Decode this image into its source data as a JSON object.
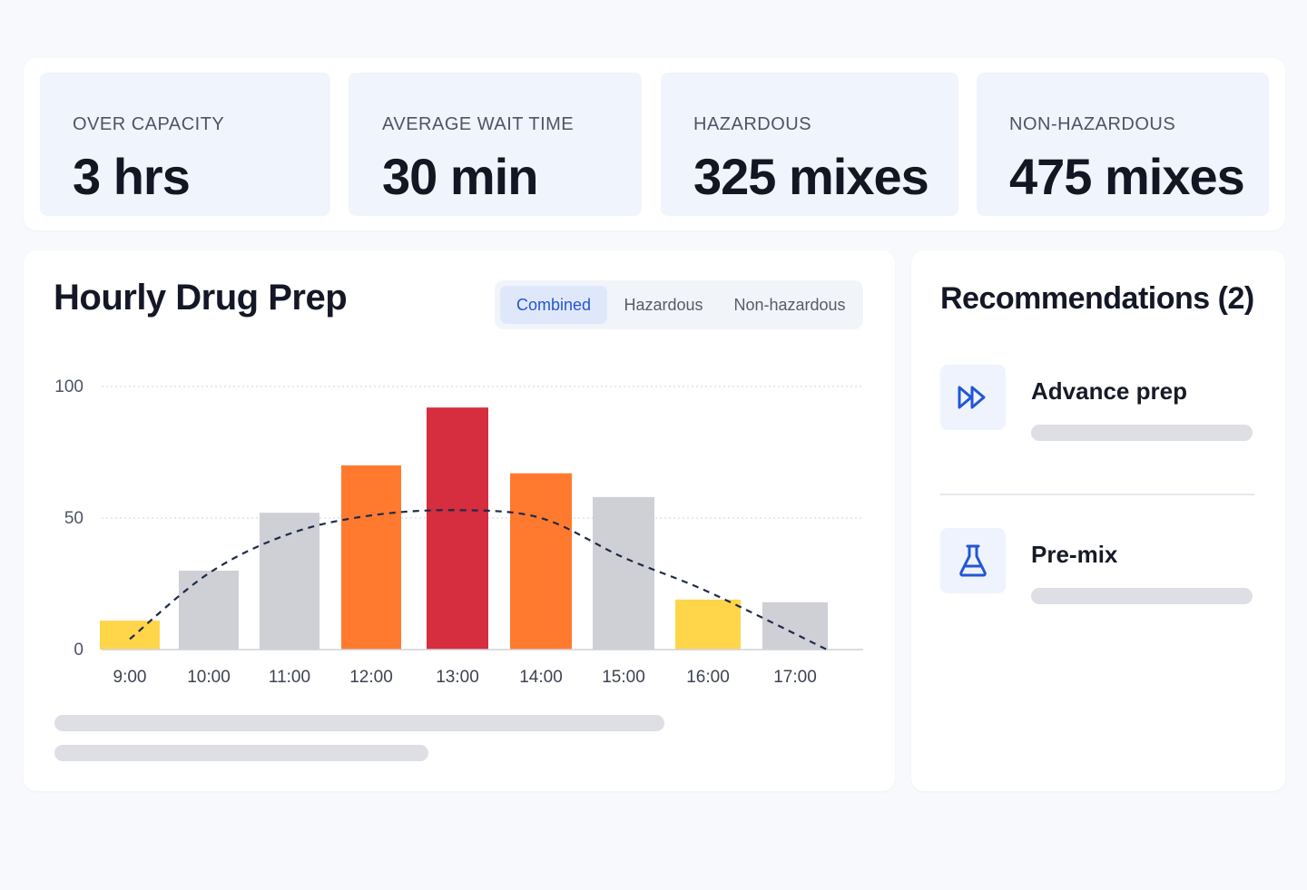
{
  "stats": [
    {
      "label": "OVER CAPACITY",
      "value": "3 hrs"
    },
    {
      "label": "AVERAGE WAIT TIME",
      "value": "30 min"
    },
    {
      "label": "HAZARDOUS",
      "value": "325 mixes"
    },
    {
      "label": "NON-HAZARDOUS",
      "value": "475 mixes"
    }
  ],
  "chart_panel": {
    "title": "Hourly Drug Prep",
    "tabs": [
      {
        "label": "Combined",
        "active": true
      },
      {
        "label": "Hazardous",
        "active": false
      },
      {
        "label": "Non-hazardous",
        "active": false
      }
    ]
  },
  "chart_data": {
    "type": "bar",
    "title": "Hourly Drug Prep",
    "xlabel": "",
    "ylabel": "",
    "categories": [
      "9:00",
      "10:00",
      "11:00",
      "12:00",
      "13:00",
      "14:00",
      "15:00",
      "16:00",
      "17:00"
    ],
    "values": [
      11,
      30,
      52,
      70,
      92,
      67,
      58,
      19,
      18
    ],
    "bar_colors": [
      "#ffd54a",
      "#cfd0d5",
      "#cfd0d5",
      "#ff7a2f",
      "#d62d3f",
      "#ff7a2f",
      "#cfd0d5",
      "#ffd54a",
      "#cfd0d5"
    ],
    "trend_line": [
      4,
      29,
      44,
      51,
      53,
      50,
      35,
      22,
      0
    ],
    "y_ticks": [
      "0",
      "50",
      "100"
    ],
    "ylim": [
      0,
      100
    ],
    "grid": true,
    "legend": "none"
  },
  "recommendations": {
    "title": "Recommendations (2)",
    "items": [
      {
        "label": "Advance prep",
        "icon": "fast-forward-icon"
      },
      {
        "label": "Pre-mix",
        "icon": "flask-icon"
      }
    ]
  },
  "colors": {
    "accent": "#2356d6",
    "tile_bg": "#f0f4fc",
    "trend": "#1d2a4a"
  }
}
